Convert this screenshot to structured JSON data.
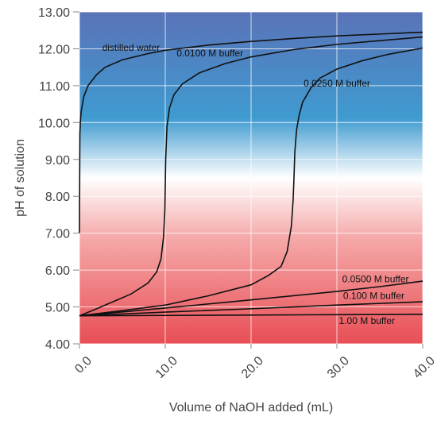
{
  "chart_data": {
    "type": "line",
    "title": "",
    "xlabel": "Volume of NaOH added (mL)",
    "ylabel": "pH of solution",
    "xlim": [
      0,
      40
    ],
    "ylim": [
      4.0,
      13.0
    ],
    "x_ticks": [
      "0.0",
      "10.0",
      "20.0",
      "30.0",
      "40.0"
    ],
    "y_ticks": [
      "4.00",
      "5.00",
      "6.00",
      "7.00",
      "8.00",
      "9.00",
      "10.00",
      "11.00",
      "12.00",
      "13.00"
    ],
    "grid": true,
    "background_gradient": [
      "#5a73b8",
      "#3f9bd0",
      "#ffffff",
      "#f5a9a9",
      "#e84e55"
    ],
    "line_color": "#111111",
    "series": [
      {
        "name": "distilled water",
        "x": [
          0,
          0.05,
          0.1,
          0.2,
          0.5,
          1,
          2,
          3,
          5,
          8,
          10,
          15,
          20,
          25,
          30,
          35,
          40
        ],
        "y": [
          7.0,
          9.7,
          10.0,
          10.3,
          10.7,
          11.0,
          11.3,
          11.5,
          11.7,
          11.87,
          11.96,
          12.1,
          12.2,
          12.28,
          12.35,
          12.4,
          12.45
        ]
      },
      {
        "name": "0.0100 M buffer",
        "x": [
          0,
          2,
          4,
          6,
          8,
          9,
          9.5,
          9.8,
          9.95,
          10.0,
          10.05,
          10.2,
          10.5,
          11,
          12,
          14,
          17,
          20,
          25,
          30,
          35,
          40
        ],
        "y": [
          4.76,
          4.95,
          5.15,
          5.35,
          5.65,
          5.95,
          6.3,
          6.9,
          7.6,
          8.3,
          9.0,
          9.9,
          10.4,
          10.75,
          11.05,
          11.35,
          11.6,
          11.78,
          11.98,
          12.12,
          12.22,
          12.32
        ]
      },
      {
        "name": "0.0250 M buffer",
        "x": [
          0,
          5,
          10,
          15,
          20,
          22,
          23.5,
          24.2,
          24.7,
          24.9,
          25.0,
          25.1,
          25.3,
          25.6,
          26,
          27,
          28,
          30,
          33,
          36,
          40
        ],
        "y": [
          4.76,
          4.9,
          5.05,
          5.3,
          5.6,
          5.85,
          6.1,
          6.5,
          7.2,
          7.9,
          8.5,
          9.2,
          9.8,
          10.2,
          10.55,
          10.95,
          11.2,
          11.45,
          11.68,
          11.85,
          12.02
        ]
      },
      {
        "name": "0.0500 M buffer",
        "x": [
          0,
          10,
          20,
          30,
          35,
          38,
          40
        ],
        "y": [
          4.76,
          4.97,
          5.19,
          5.42,
          5.55,
          5.64,
          5.7
        ]
      },
      {
        "name": "0.100 M  buffer",
        "x": [
          0,
          10,
          20,
          30,
          40
        ],
        "y": [
          4.76,
          4.86,
          4.95,
          5.05,
          5.14
        ]
      },
      {
        "name": "1.00 M buffer",
        "x": [
          0,
          10,
          20,
          30,
          40
        ],
        "y": [
          4.76,
          4.77,
          4.78,
          4.79,
          4.8
        ]
      }
    ]
  }
}
